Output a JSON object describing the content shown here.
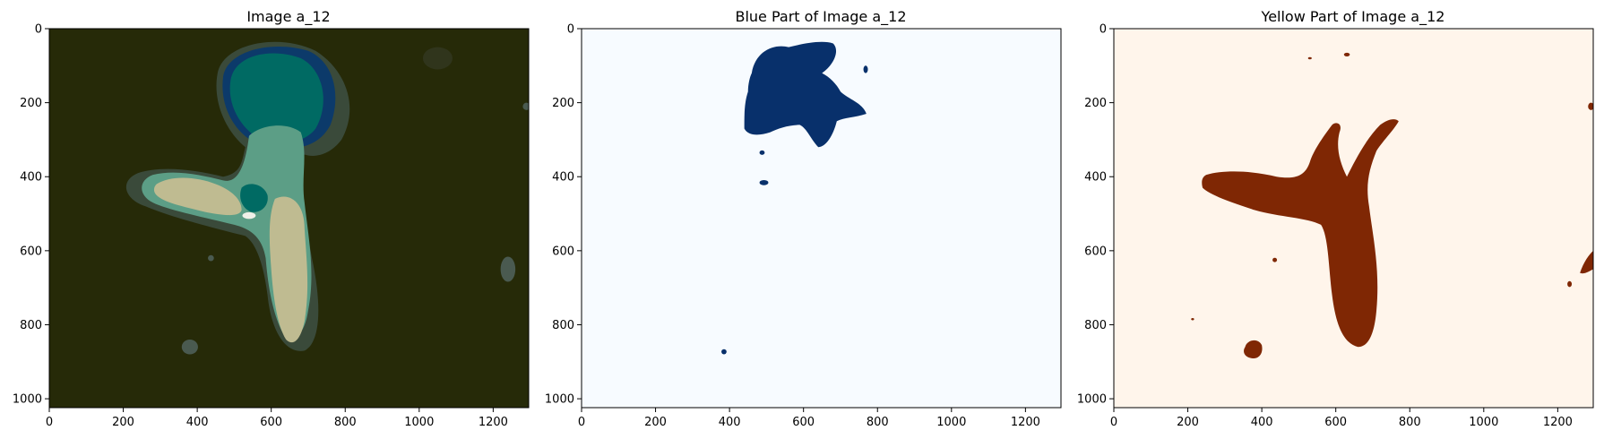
{
  "chart_data": [
    {
      "type": "image",
      "title": "Image a_12",
      "xlim": [
        0,
        1296
      ],
      "ylim": [
        1024,
        0
      ],
      "xticks": [
        0,
        200,
        400,
        600,
        800,
        1000,
        1200
      ],
      "yticks": [
        0,
        200,
        400,
        600,
        800,
        1000
      ],
      "colors": {
        "background": "#262a08",
        "halo": "#3a4a3a",
        "teal": "#006a63",
        "blue": "#0c3a6a",
        "mid_green": "#5c9e86",
        "tan": "#bfbb91",
        "white": "#f0f0e8"
      }
    },
    {
      "type": "image",
      "title": "Blue Part of Image a_12",
      "xlim": [
        0,
        1296
      ],
      "ylim": [
        1024,
        0
      ],
      "xticks": [
        0,
        200,
        400,
        600,
        800,
        1000,
        1200
      ],
      "yticks": [
        0,
        200,
        400,
        600,
        800,
        1000
      ],
      "colors": {
        "background": "#f7fbff",
        "foreground": "#08306b"
      }
    },
    {
      "type": "image",
      "title": "Yellow Part of Image a_12",
      "xlim": [
        0,
        1296
      ],
      "ylim": [
        1024,
        0
      ],
      "xticks": [
        0,
        200,
        400,
        600,
        800,
        1000,
        1200
      ],
      "yticks": [
        0,
        200,
        400,
        600,
        800,
        1000
      ],
      "colors": {
        "background": "#fff5eb",
        "foreground": "#7f2704"
      }
    }
  ]
}
